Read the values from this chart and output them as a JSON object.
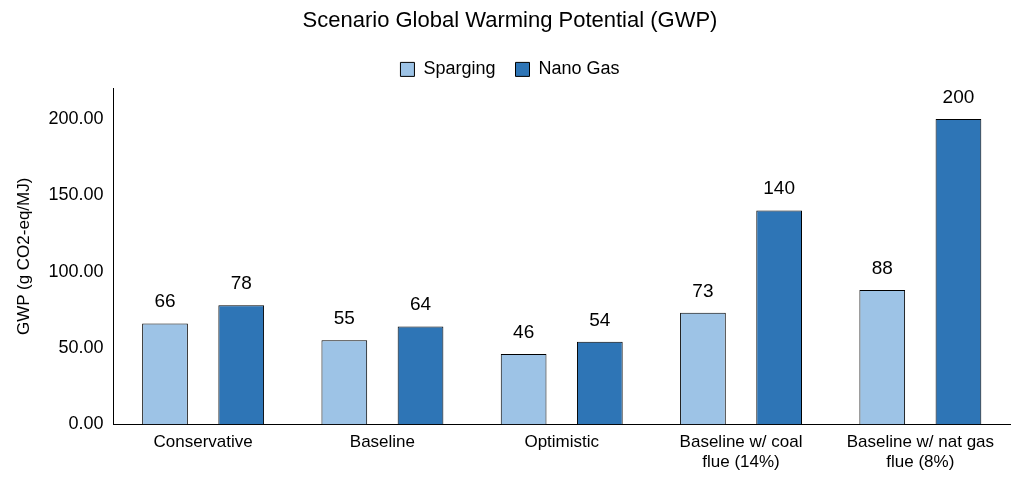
{
  "chart_data": {
    "type": "bar",
    "title": "Scenario Global Warming Potential (GWP)",
    "ylabel": "GWP (g CO2-eq/MJ)",
    "categories": [
      "Conservative",
      "Baseline",
      "Optimistic",
      "Baseline w/ coal flue (14%)",
      "Baseline w/ nat gas flue (8%)"
    ],
    "series": [
      {
        "name": "Sparging",
        "color": "#9dc3e6",
        "values": [
          66,
          55,
          46,
          73,
          88
        ]
      },
      {
        "name": "Nano Gas",
        "color": "#2e75b6",
        "values": [
          78,
          64,
          54,
          140,
          200
        ]
      }
    ],
    "ylim": [
      0,
      220
    ],
    "yticks": [
      {
        "value": 0,
        "label": "0.00"
      },
      {
        "value": 50,
        "label": "50.00"
      },
      {
        "value": 100,
        "label": "100.00"
      },
      {
        "value": 150,
        "label": "150.00"
      },
      {
        "value": 200,
        "label": "200.00"
      }
    ],
    "grid": false,
    "legend": "top",
    "data_labels": true
  }
}
